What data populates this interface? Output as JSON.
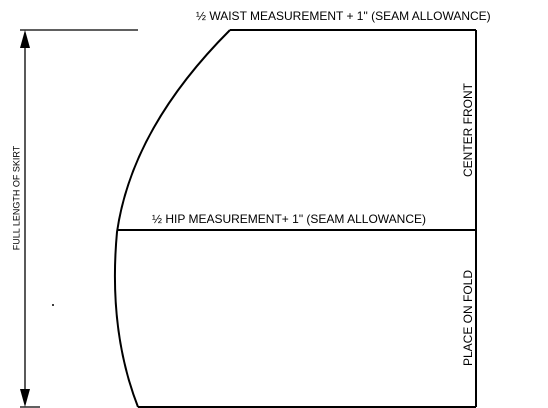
{
  "waist_label": "½ WAIST MEASUREMENT + 1\" (SEAM ALLOWANCE)",
  "hip_label": "½ HIP MEASUREMENT+ 1\" (SEAM ALLOWANCE)",
  "center_front_label": "CENTER FRONT",
  "fold_label": "PLACE ON FOLD",
  "length_label": "FULL LENGTH OF SKIRT"
}
